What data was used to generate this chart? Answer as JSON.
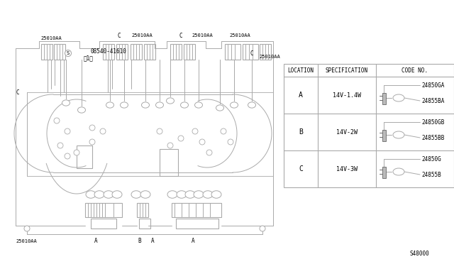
{
  "bg_color": "#ffffff",
  "line_color": "#888888",
  "dark_color": "#555555",
  "part_number": "S48000",
  "table": {
    "rows": [
      {
        "loc": "A",
        "spec": "14V-1.4W",
        "codes": [
          "24850GA",
          "24855BA"
        ]
      },
      {
        "loc": "B",
        "spec": "14V-2W",
        "codes": [
          "24850GB",
          "24855BB"
        ]
      },
      {
        "loc": "C",
        "spec": "14V-3W",
        "codes": [
          "24850G",
          "24855B"
        ]
      }
    ]
  }
}
